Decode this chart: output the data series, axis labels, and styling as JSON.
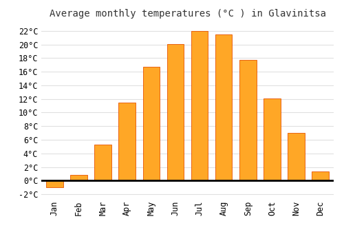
{
  "title": "Average monthly temperatures (°C ) in Glavinitsa",
  "months": [
    "Jan",
    "Feb",
    "Mar",
    "Apr",
    "May",
    "Jun",
    "Jul",
    "Aug",
    "Sep",
    "Oct",
    "Nov",
    "Dec"
  ],
  "values": [
    -1.0,
    0.8,
    5.3,
    11.5,
    16.7,
    20.1,
    22.0,
    21.5,
    17.7,
    12.1,
    7.0,
    1.3
  ],
  "bar_color": "#FFA726",
  "bar_edge_color": "#E65100",
  "ylim": [
    -2.5,
    23
  ],
  "yticks": [
    -2,
    0,
    2,
    4,
    6,
    8,
    10,
    12,
    14,
    16,
    18,
    20,
    22
  ],
  "background_color": "#FFFFFF",
  "grid_color": "#E0E0E0",
  "title_fontsize": 10,
  "tick_fontsize": 8.5
}
